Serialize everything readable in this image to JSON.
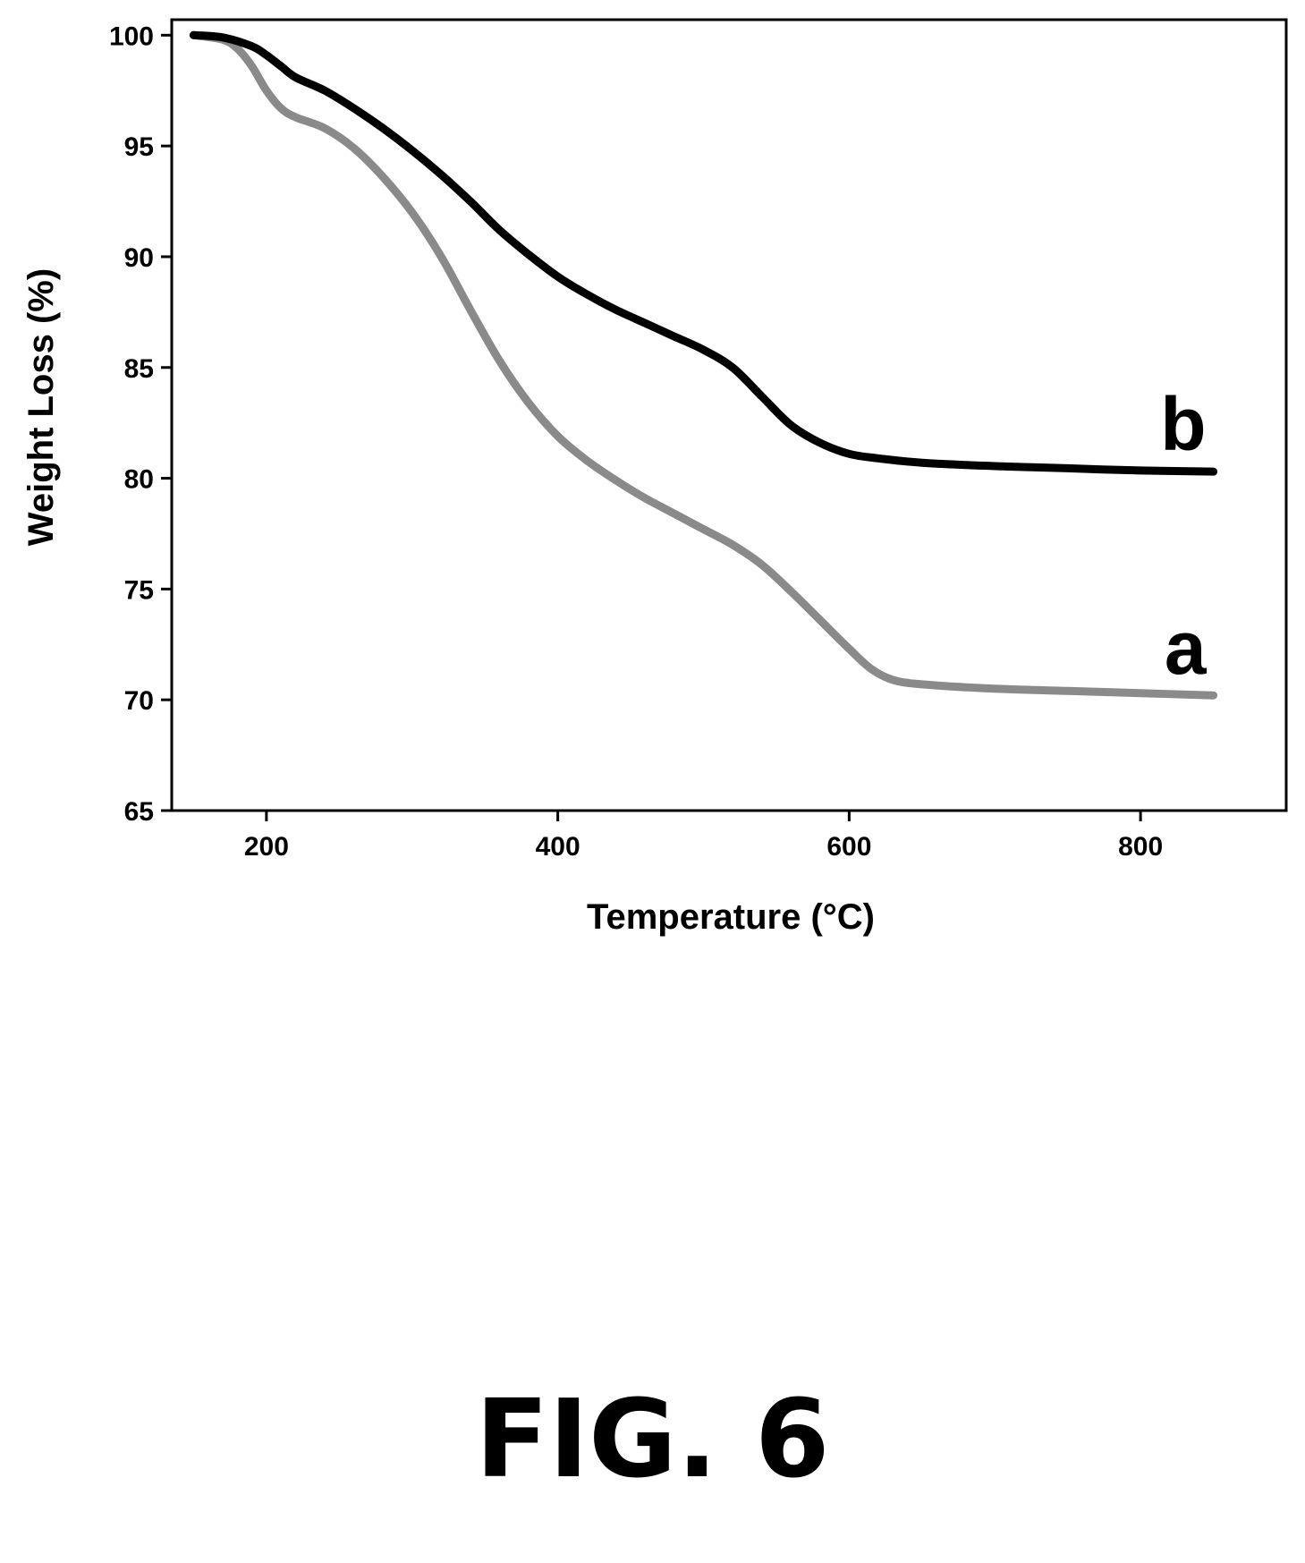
{
  "figure": {
    "caption": "FIG. 6"
  },
  "chart_data": {
    "type": "line",
    "title": "",
    "xlabel": "Temperature (°C)",
    "ylabel": "Weight Loss (%)",
    "xlim": [
      135,
      900
    ],
    "ylim": [
      65,
      100.7
    ],
    "xticks": [
      200,
      400,
      600,
      800
    ],
    "yticks": [
      65,
      70,
      75,
      80,
      85,
      90,
      95,
      100
    ],
    "grid": false,
    "legend": "none",
    "series": [
      {
        "label": "a",
        "color": "#8a8a8a",
        "points": [
          [
            150,
            100.0
          ],
          [
            170,
            99.8
          ],
          [
            180,
            99.4
          ],
          [
            190,
            98.6
          ],
          [
            200,
            97.5
          ],
          [
            210,
            96.7
          ],
          [
            220,
            96.3
          ],
          [
            240,
            95.8
          ],
          [
            260,
            94.9
          ],
          [
            280,
            93.6
          ],
          [
            300,
            92.0
          ],
          [
            320,
            90.0
          ],
          [
            340,
            87.6
          ],
          [
            360,
            85.3
          ],
          [
            380,
            83.4
          ],
          [
            400,
            81.9
          ],
          [
            420,
            80.8
          ],
          [
            440,
            79.9
          ],
          [
            460,
            79.1
          ],
          [
            480,
            78.4
          ],
          [
            500,
            77.7
          ],
          [
            520,
            77.0
          ],
          [
            540,
            76.1
          ],
          [
            560,
            74.9
          ],
          [
            580,
            73.6
          ],
          [
            600,
            72.3
          ],
          [
            615,
            71.4
          ],
          [
            630,
            70.9
          ],
          [
            650,
            70.7
          ],
          [
            700,
            70.5
          ],
          [
            750,
            70.4
          ],
          [
            800,
            70.3
          ],
          [
            850,
            70.2
          ]
        ]
      },
      {
        "label": "b",
        "color": "#000000",
        "points": [
          [
            150,
            100.0
          ],
          [
            170,
            99.9
          ],
          [
            190,
            99.5
          ],
          [
            200,
            99.1
          ],
          [
            210,
            98.6
          ],
          [
            220,
            98.1
          ],
          [
            240,
            97.5
          ],
          [
            260,
            96.7
          ],
          [
            280,
            95.8
          ],
          [
            300,
            94.8
          ],
          [
            320,
            93.7
          ],
          [
            340,
            92.5
          ],
          [
            360,
            91.2
          ],
          [
            380,
            90.1
          ],
          [
            400,
            89.1
          ],
          [
            420,
            88.3
          ],
          [
            440,
            87.6
          ],
          [
            460,
            87.0
          ],
          [
            480,
            86.4
          ],
          [
            500,
            85.8
          ],
          [
            520,
            85.0
          ],
          [
            540,
            83.7
          ],
          [
            560,
            82.4
          ],
          [
            580,
            81.6
          ],
          [
            600,
            81.1
          ],
          [
            620,
            80.9
          ],
          [
            650,
            80.7
          ],
          [
            700,
            80.55
          ],
          [
            750,
            80.45
          ],
          [
            800,
            80.35
          ],
          [
            850,
            80.3
          ]
        ]
      }
    ]
  }
}
